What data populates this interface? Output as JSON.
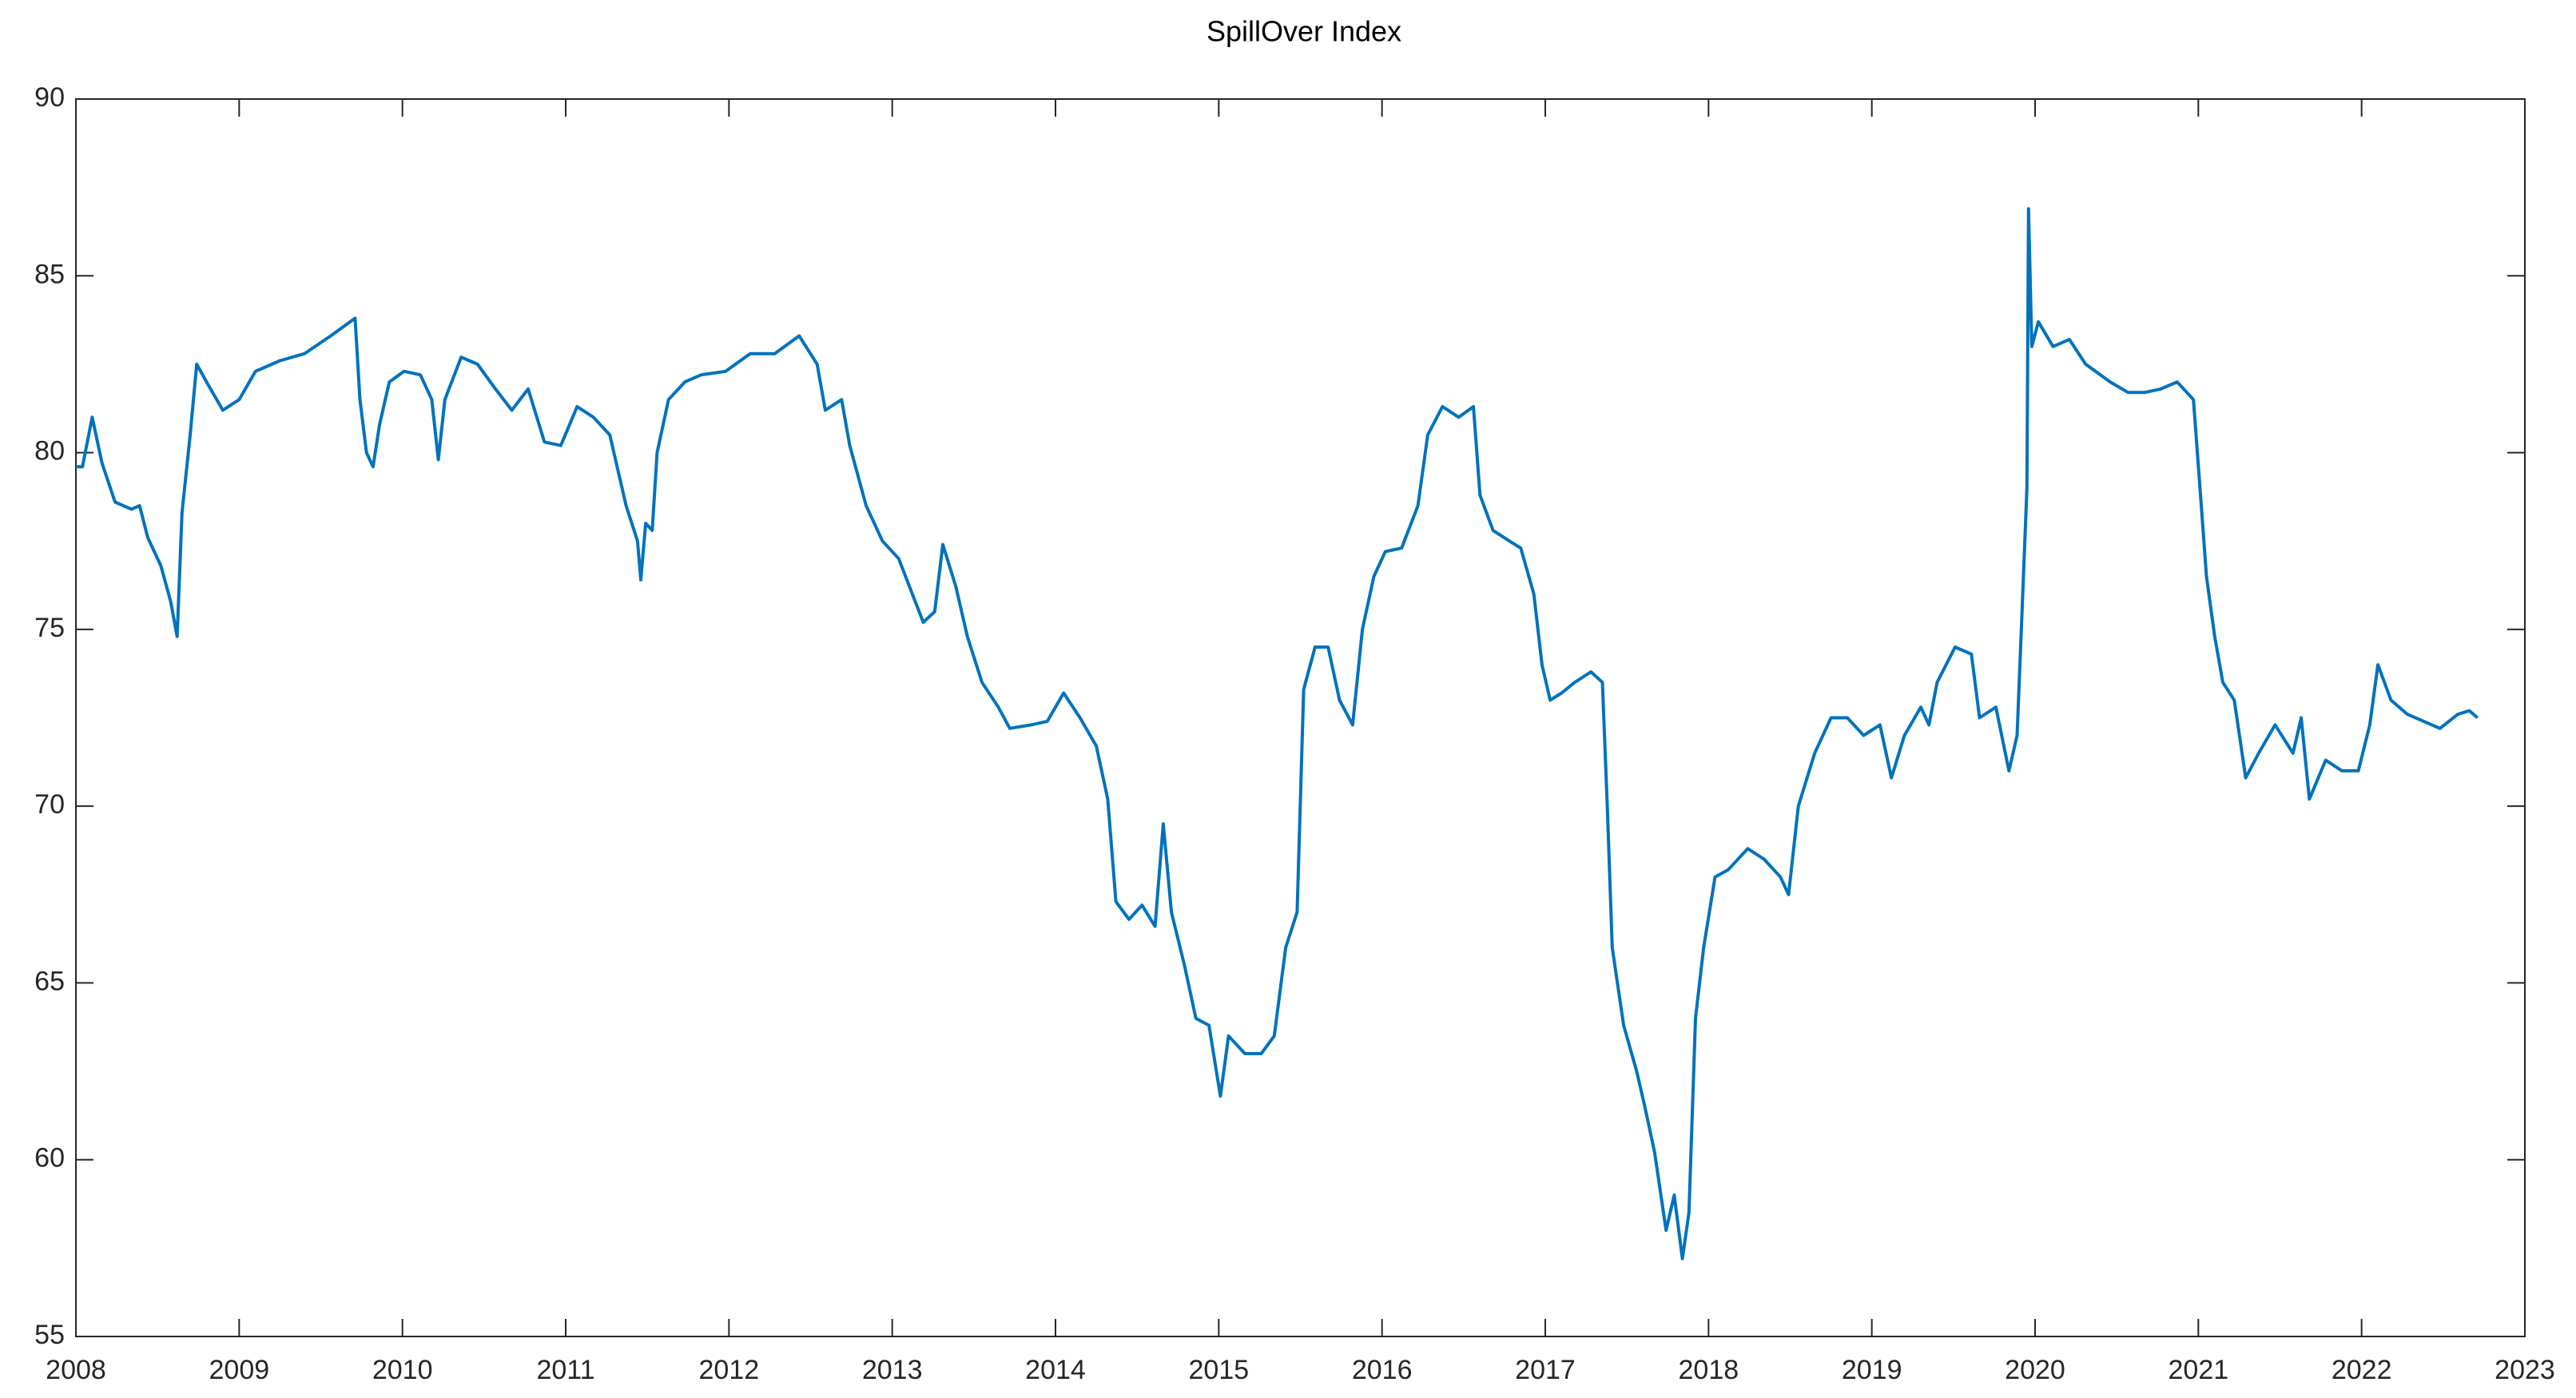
{
  "chart_data": {
    "type": "line",
    "title": "SpillOver Index",
    "x": [
      2008.0,
      2008.04,
      2008.1,
      2008.16,
      2008.24,
      2008.34,
      2008.39,
      2008.44,
      2008.52,
      2008.58,
      2008.62,
      2008.65,
      2008.7,
      2008.74,
      2008.8,
      2008.9,
      2009.0,
      2009.1,
      2009.25,
      2009.4,
      2009.56,
      2009.71,
      2009.74,
      2009.78,
      2009.82,
      2009.86,
      2009.92,
      2010.01,
      2010.11,
      2010.18,
      2010.22,
      2010.26,
      2010.36,
      2010.46,
      2010.57,
      2010.67,
      2010.77,
      2010.87,
      2010.97,
      2011.07,
      2011.17,
      2011.27,
      2011.37,
      2011.44,
      2011.46,
      2011.49,
      2011.53,
      2011.56,
      2011.63,
      2011.73,
      2011.83,
      2011.98,
      2012.13,
      2012.28,
      2012.43,
      2012.54,
      2012.59,
      2012.69,
      2012.74,
      2012.84,
      2012.94,
      2013.04,
      2013.14,
      2013.19,
      2013.26,
      2013.31,
      2013.39,
      2013.46,
      2013.55,
      2013.65,
      2013.72,
      2013.85,
      2013.95,
      2014.05,
      2014.15,
      2014.25,
      2014.32,
      2014.37,
      2014.45,
      2014.53,
      2014.61,
      2014.66,
      2014.71,
      2014.79,
      2014.86,
      2014.94,
      2015.01,
      2015.06,
      2015.16,
      2015.26,
      2015.34,
      2015.41,
      2015.48,
      2015.52,
      2015.59,
      2015.67,
      2015.74,
      2015.82,
      2015.88,
      2015.95,
      2016.02,
      2016.12,
      2016.22,
      2016.28,
      2016.37,
      2016.47,
      2016.56,
      2016.6,
      2016.68,
      2016.78,
      2016.85,
      2016.93,
      2016.98,
      2017.03,
      2017.1,
      2017.18,
      2017.28,
      2017.35,
      2017.38,
      2017.41,
      2017.48,
      2017.56,
      2017.61,
      2017.67,
      2017.74,
      2017.79,
      2017.84,
      2017.88,
      2017.92,
      2017.97,
      2018.04,
      2018.12,
      2018.24,
      2018.34,
      2018.44,
      2018.49,
      2018.55,
      2018.65,
      2018.75,
      2018.85,
      2018.95,
      2019.05,
      2019.12,
      2019.2,
      2019.3,
      2019.35,
      2019.4,
      2019.51,
      2019.61,
      2019.66,
      2019.76,
      2019.84,
      2019.89,
      2019.92,
      2019.95,
      2019.96,
      2019.98,
      2020.02,
      2020.11,
      2020.21,
      2020.31,
      2020.46,
      2020.57,
      2020.67,
      2020.77,
      2020.87,
      2020.97,
      2021.01,
      2021.05,
      2021.1,
      2021.15,
      2021.22,
      2021.29,
      2021.37,
      2021.47,
      2021.58,
      2021.63,
      2021.68,
      2021.78,
      2021.88,
      2021.98,
      2022.05,
      2022.1,
      2022.18,
      2022.28,
      2022.38,
      2022.48,
      2022.59,
      2022.66,
      2022.71
    ],
    "values": [
      79.6,
      79.6,
      81,
      79.7,
      78.6,
      78.4,
      78.5,
      77.6,
      76.8,
      75.8,
      74.8,
      78.3,
      80.5,
      82.5,
      82,
      81.2,
      81.5,
      82.3,
      82.6,
      82.8,
      83.3,
      83.8,
      81.5,
      80,
      79.6,
      80.8,
      82,
      82.3,
      82.2,
      81.5,
      79.8,
      81.5,
      82.7,
      82.5,
      81.8,
      81.2,
      81.8,
      80.3,
      80.2,
      81.3,
      81,
      80.5,
      78.5,
      77.5,
      76.4,
      78,
      77.8,
      80,
      81.5,
      82,
      82.2,
      82.3,
      82.8,
      82.8,
      83.3,
      82.5,
      81.2,
      81.5,
      80.2,
      78.5,
      77.5,
      77,
      75.8,
      75.2,
      75.5,
      77.4,
      76.2,
      74.8,
      73.5,
      72.8,
      72.2,
      72.3,
      72.4,
      73.2,
      72.5,
      71.7,
      70.2,
      67.3,
      66.8,
      67.2,
      66.6,
      69.5,
      67,
      65.5,
      64,
      63.8,
      61.8,
      63.5,
      63,
      63,
      63.5,
      66,
      67,
      73.3,
      74.5,
      74.5,
      73,
      72.3,
      75,
      76.5,
      77.2,
      77.3,
      78.5,
      80.5,
      81.3,
      81,
      81.3,
      78.8,
      77.8,
      77.5,
      77.3,
      76,
      74,
      73,
      73.2,
      73.5,
      73.8,
      73.5,
      70,
      66,
      63.8,
      62.5,
      61.5,
      60.2,
      58,
      59,
      57.2,
      58.5,
      64,
      66,
      68,
      68.2,
      68.8,
      68.5,
      68,
      67.5,
      70,
      71.5,
      72.5,
      72.5,
      72,
      72.3,
      70.8,
      72,
      72.8,
      72.3,
      73.5,
      74.5,
      74.3,
      72.5,
      72.8,
      71,
      72,
      75.5,
      79,
      86.9,
      83,
      83.7,
      83,
      83.2,
      82.5,
      82,
      81.7,
      81.7,
      81.8,
      82,
      81.5,
      79,
      76.5,
      74.8,
      73.5,
      73,
      70.8,
      71.5,
      72.3,
      71.5,
      72.5,
      70.2,
      71.3,
      71,
      71,
      72.3,
      74,
      73,
      72.6,
      72.4,
      72.2,
      72.6,
      72.7,
      72.5
    ],
    "color": "#0072bd",
    "xlim": [
      2008,
      2023
    ],
    "xticks": [
      2008,
      2009,
      2010,
      2011,
      2012,
      2013,
      2014,
      2015,
      2016,
      2017,
      2018,
      2019,
      2020,
      2021,
      2022,
      2023
    ],
    "ylim": [
      55,
      90
    ],
    "yticks": [
      55,
      60,
      65,
      70,
      75,
      80,
      85,
      90
    ]
  }
}
